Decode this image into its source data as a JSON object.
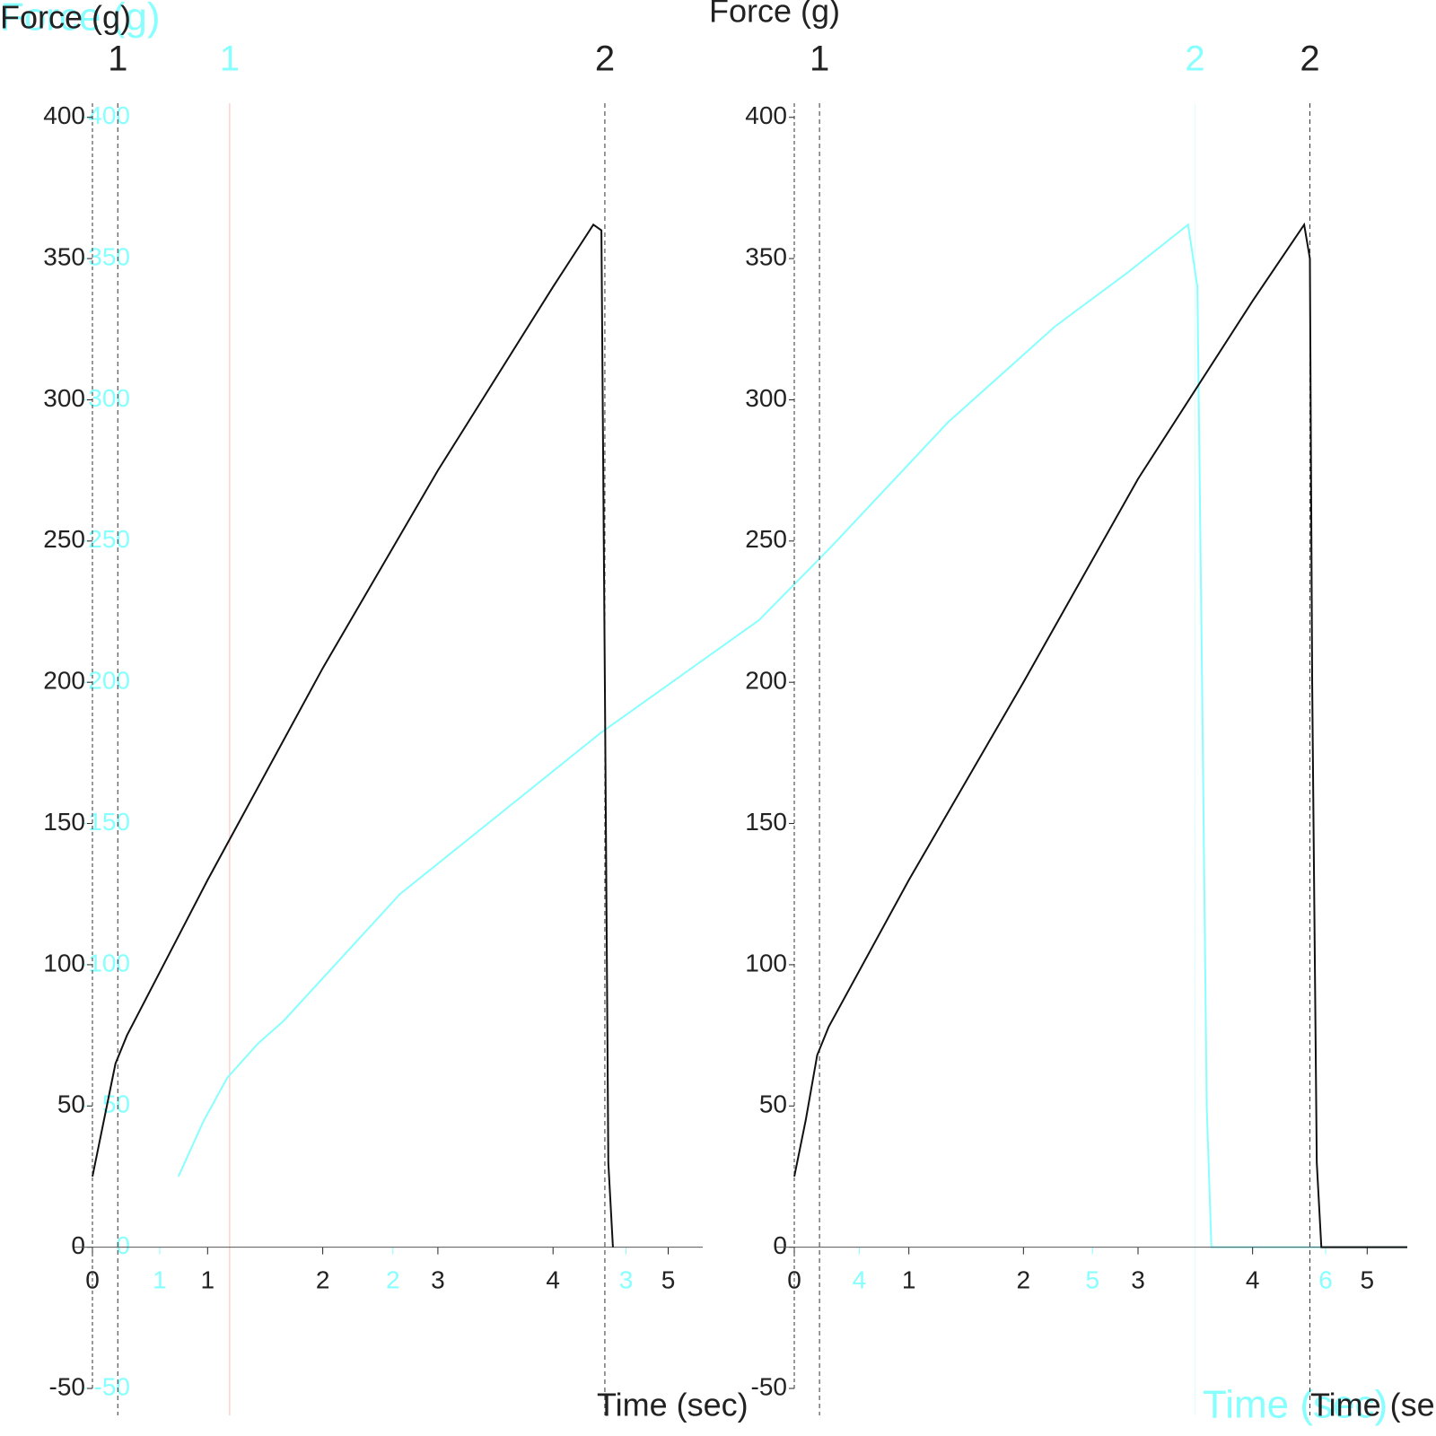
{
  "chart_data": [
    {
      "type": "line",
      "title": "Force (g)",
      "x_label": "Time (sec)",
      "text_color": "#8ff",
      "xlim": [
        0.7,
        6.35
      ],
      "ylim": [
        -50,
        405
      ],
      "xticks": [
        1,
        2,
        3,
        4,
        5,
        6
      ],
      "yticks": [
        -50,
        0,
        50,
        100,
        150,
        200,
        250,
        300,
        350,
        400
      ],
      "markers": [
        {
          "label": "1",
          "x": 1.3,
          "color": "#fbb"
        },
        {
          "label": "2",
          "x": 5.44,
          "color": "#dff"
        }
      ],
      "series": [
        {
          "color": "#8ff",
          "x": [
            1.08,
            1.19,
            1.29,
            1.42,
            1.53,
            2.03,
            2.89,
            3.57,
            3.88,
            4.38,
            4.84,
            5.15,
            5.41,
            5.45,
            5.47,
            5.49,
            5.51,
            6.35
          ],
          "values": [
            25,
            45,
            60,
            72,
            80,
            125,
            182,
            222,
            248,
            292,
            326,
            345,
            362,
            340,
            200,
            50,
            0,
            0
          ]
        }
      ]
    },
    {
      "type": "line",
      "title": "Force (g)",
      "x_label": "Time (sec)",
      "text_color": "#222",
      "xlim": [
        0,
        5.3
      ],
      "ylim": [
        -50,
        405
      ],
      "xticks": [
        0,
        1,
        2,
        3,
        4,
        5
      ],
      "yticks": [
        -50,
        0,
        50,
        100,
        150,
        200,
        250,
        300,
        350,
        400
      ],
      "markers": [
        {
          "label": "1",
          "x": 0.22,
          "color": "#333"
        },
        {
          "label": "2",
          "x": 4.45,
          "color": "#333"
        }
      ],
      "series": [
        {
          "color": "#111",
          "x": [
            0,
            0.1,
            0.2,
            0.3,
            1,
            2,
            3,
            4,
            4.35,
            4.42,
            4.45,
            4.48,
            4.52
          ],
          "values": [
            25,
            45,
            65,
            75,
            130,
            205,
            275,
            340,
            362,
            360,
            200,
            30,
            0
          ]
        }
      ]
    },
    {
      "type": "line",
      "title": "Force (g)",
      "x_label": "Time (sec)",
      "text_color": "#222",
      "xlim": [
        0,
        5.35
      ],
      "ylim": [
        -50,
        405
      ],
      "xticks": [
        0,
        1,
        2,
        3,
        4,
        5
      ],
      "yticks": [
        -50,
        0,
        50,
        100,
        150,
        200,
        250,
        300,
        350,
        400
      ],
      "markers": [
        {
          "label": "1",
          "x": 0.22,
          "color": "#333"
        },
        {
          "label": "2",
          "x": 4.5,
          "color": "#333"
        }
      ],
      "series": [
        {
          "color": "#111",
          "x": [
            0,
            0.1,
            0.2,
            0.3,
            1,
            2,
            3,
            4,
            4.45,
            4.5,
            4.52,
            4.56,
            4.6,
            5.35
          ],
          "values": [
            25,
            45,
            68,
            78,
            130,
            200,
            272,
            335,
            362,
            350,
            200,
            30,
            0,
            0
          ]
        }
      ]
    }
  ]
}
